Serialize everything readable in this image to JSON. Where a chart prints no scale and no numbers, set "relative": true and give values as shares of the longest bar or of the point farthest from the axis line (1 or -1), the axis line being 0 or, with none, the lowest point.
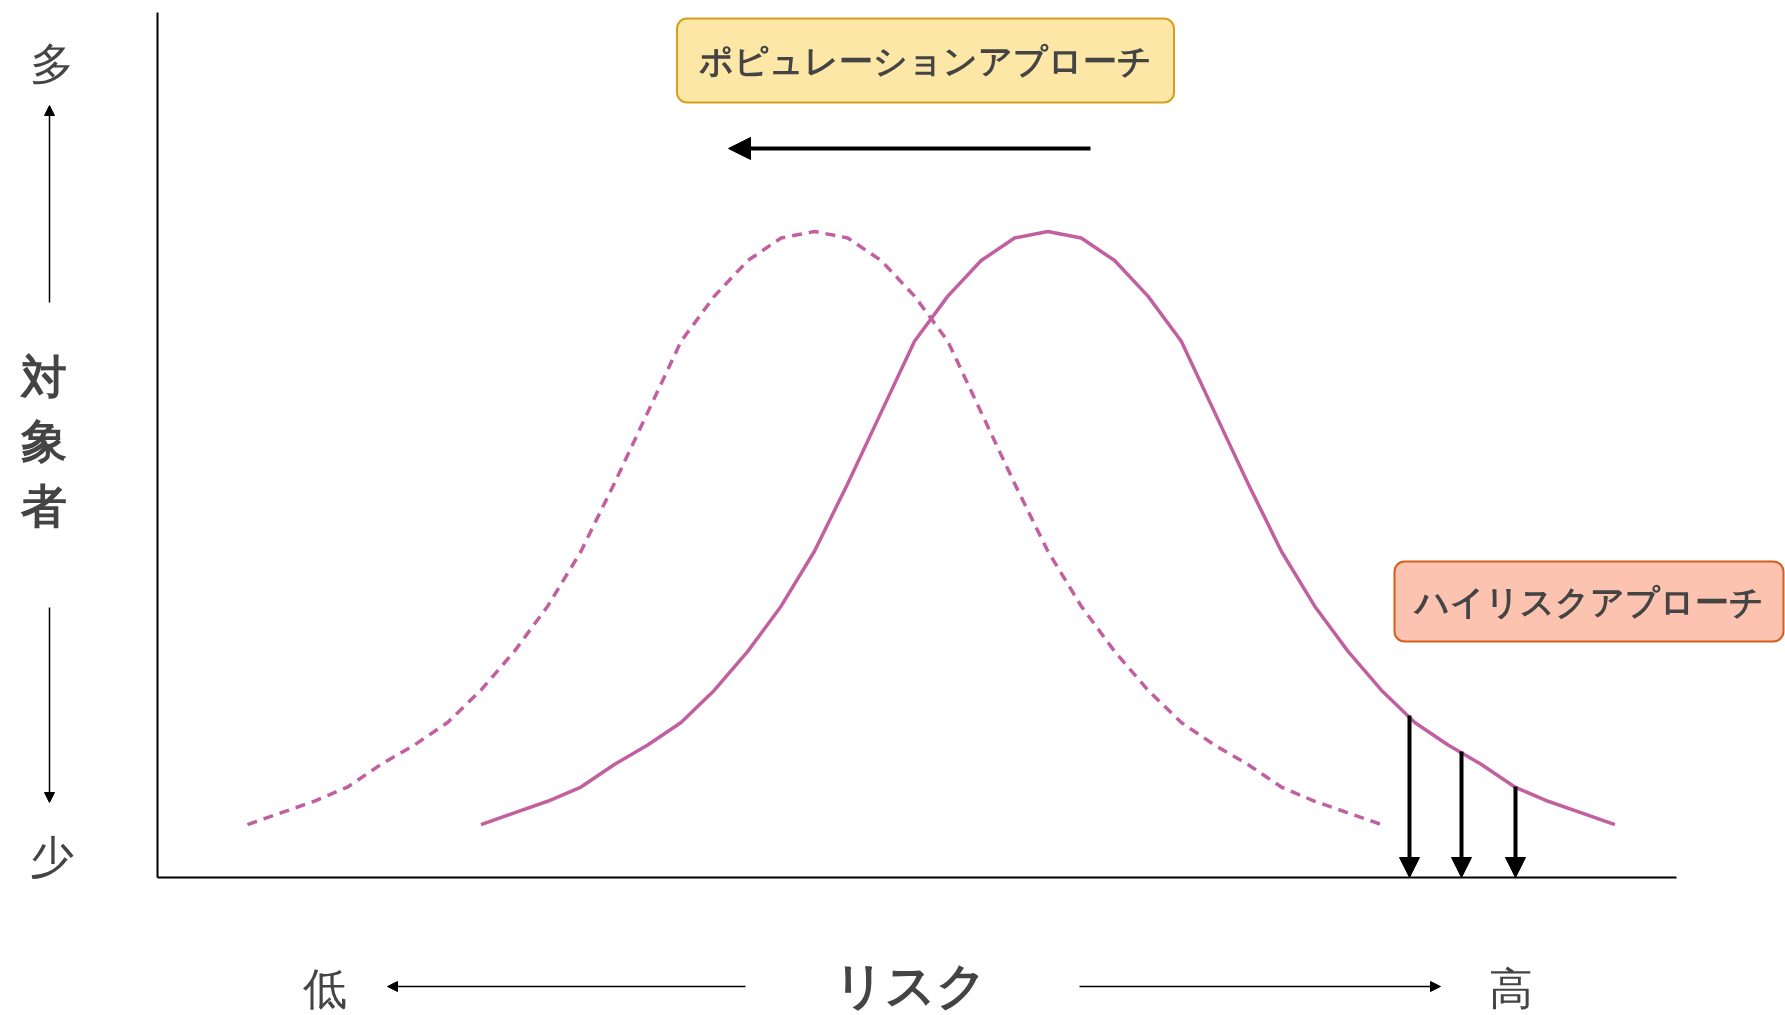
{
  "chart_data": {
    "type": "line",
    "relative": true,
    "xlabel": "リスク",
    "ylabel": "対象者",
    "categories": [
      null,
      null,
      null,
      null,
      null,
      null,
      null,
      null,
      null,
      null,
      null,
      null,
      null,
      null,
      null,
      null,
      null,
      null,
      null,
      null,
      null,
      null,
      null,
      null,
      null,
      null,
      null,
      null,
      null,
      null,
      null,
      null,
      null,
      null,
      null,
      null,
      null,
      null,
      null,
      null,
      null,
      null
    ],
    "series": [
      {
        "color": "#c2609f",
        "line_style": "dashed",
        "values": [
          0.082,
          0.1,
          0.118,
          0.14,
          0.175,
          0.205,
          0.24,
          0.29,
          0.35,
          0.42,
          0.505,
          0.61,
          0.72,
          0.83,
          0.9,
          0.955,
          0.99,
          1,
          0.99,
          0.955,
          0.9,
          0.83,
          0.72,
          0.61,
          0.505,
          0.42,
          0.35,
          0.29,
          0.24,
          0.205,
          0.175,
          0.14,
          0.118,
          0.1,
          0.082,
          null,
          null,
          null,
          null,
          null,
          null,
          null
        ]
      },
      {
        "color": "#c2609f",
        "line_style": "solid",
        "values": [
          null,
          null,
          null,
          null,
          null,
          null,
          null,
          0.082,
          0.1,
          0.118,
          0.14,
          0.175,
          0.205,
          0.24,
          0.29,
          0.35,
          0.42,
          0.505,
          0.61,
          0.72,
          0.83,
          0.9,
          0.955,
          0.99,
          1,
          0.99,
          0.955,
          0.9,
          0.83,
          0.72,
          0.61,
          0.505,
          0.42,
          0.35,
          0.29,
          0.24,
          0.205,
          0.175,
          0.14,
          0.118,
          0.1,
          0.082
        ]
      }
    ],
    "annotations": [
      "多",
      "少",
      "低",
      "高",
      "ポピュレーションアプローチ",
      "ハイリスクアプローチ"
    ]
  }
}
